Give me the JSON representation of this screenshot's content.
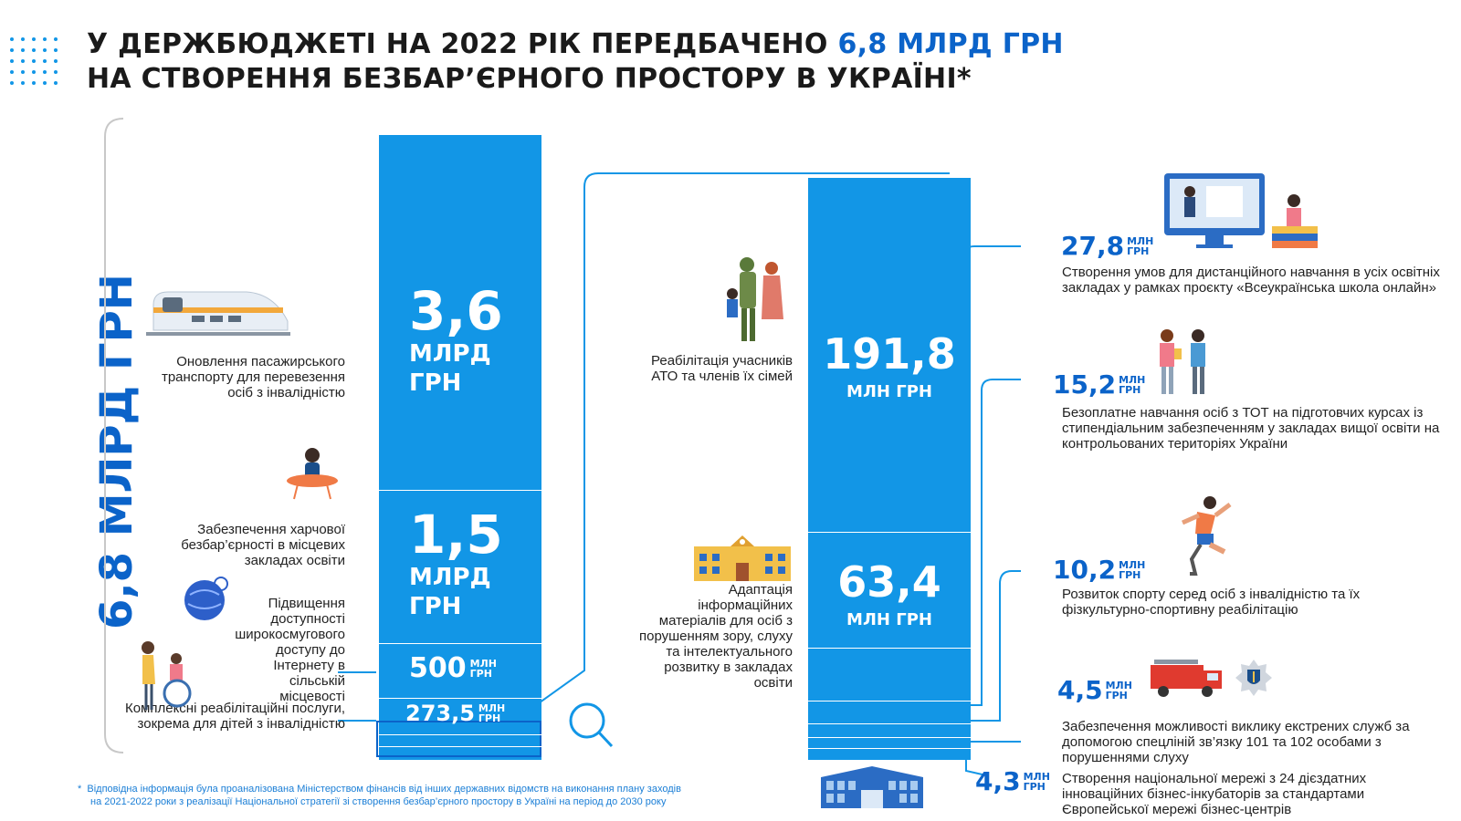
{
  "title": {
    "line1_prefix": "У ДЕРЖБЮДЖЕТІ НА 2022 РІК ПЕРЕДБАЧЕНО ",
    "line1_highlight": "6,8 МЛРД ГРН",
    "line2": "НА СТВОРЕННЯ БЕЗБАР’ЄРНОГО ПРОСТОРУ В УКРАЇНІ*"
  },
  "total_label": "6,8 МЛРД ГРН",
  "left_items": [
    {
      "value": "3,6",
      "unit_line1": "МЛРД",
      "unit_line2": "ГРН",
      "label": "Оновлення пасажирського транспорту для перевезення осіб з інвалідністю",
      "icon": "train-icon"
    },
    {
      "value": "1,5",
      "unit_line1": "МЛРД",
      "unit_line2": "ГРН",
      "label": "Забезпечення харчової безбар’єрності в місцевих закладах освіти",
      "icon": "dining-child-icon"
    },
    {
      "value": "500",
      "unit_line1": "МЛН",
      "unit_line2": "ГРН",
      "label": "Підвищення доступності широкосмугового доступу до Інтернету в сільській місцевості",
      "icon": "globe-internet-icon"
    },
    {
      "value": "273,5",
      "unit_line1": "МЛН",
      "unit_line2": "ГРН",
      "label": "Комплексні реабілітаційні послуги, зокрема для дітей з інвалідністю",
      "icon": "wheelchair-icon"
    }
  ],
  "middle_items": [
    {
      "value": "191,8",
      "unit": "МЛН ГРН",
      "label": "Реабілітація учасників АТО та членів їх сімей",
      "icon": "soldier-family-icon"
    },
    {
      "value": "63,4",
      "unit": "МЛН ГРН",
      "label": "Адаптація інформаційних матеріалів для осіб з порушенням зору, слуху та інтелектуального розвитку в закладах освіти",
      "icon": "school-building-icon"
    }
  ],
  "right_items": [
    {
      "value": "27,8",
      "unit_line1": "МЛН",
      "unit_line2": "ГРН",
      "label": "Створення умов для дистанційного навчання в усіх освітніх закладах у рамках проєкту «Всеукраїнська школа онлайн»",
      "icon": "online-school-icon"
    },
    {
      "value": "15,2",
      "unit_line1": "МЛН",
      "unit_line2": "ГРН",
      "label": "Безоплатне навчання осіб з ТОТ на підготовчих курсах із стипендіальним забезпеченням у закладах вищої освіти на контрольованих територіях України",
      "icon": "students-icon"
    },
    {
      "value": "10,2",
      "unit_line1": "МЛН",
      "unit_line2": "ГРН",
      "label": "Розвиток спорту серед осіб з інвалідністю та їх фізкультурно-спортивну реабілітацію",
      "icon": "runner-prosthesis-icon"
    },
    {
      "value": "4,5",
      "unit_line1": "МЛН",
      "unit_line2": "ГРН",
      "label": "Забезпечення можливості виклику екстрених служб за допомогою спецліній зв’язку 101 та 102 особами з порушеннями слуху",
      "icon": "fire-truck-icon"
    },
    {
      "value": "4,3",
      "unit_line1": "МЛН",
      "unit_line2": "ГРН",
      "label": "Створення національної мережі з 24 дієздатних інноваційних бізнес-інкубаторів за стандартами Європейської мережі бізнес-центрів",
      "icon": "business-center-icon"
    }
  ],
  "footnote": {
    "mark": "*",
    "line1": "Відповідна інформація була проаналізована Міністерством фінансів від інших державних відомств на виконання плану заходів",
    "line2": "на 2021-2022 роки з реалізації Національної стратегії зі створення безбар’єрного простору в Україні на період до 2030 року"
  },
  "colors": {
    "accent": "#0b63c9",
    "bar": "#1296e6",
    "text": "#1a1a1a"
  }
}
